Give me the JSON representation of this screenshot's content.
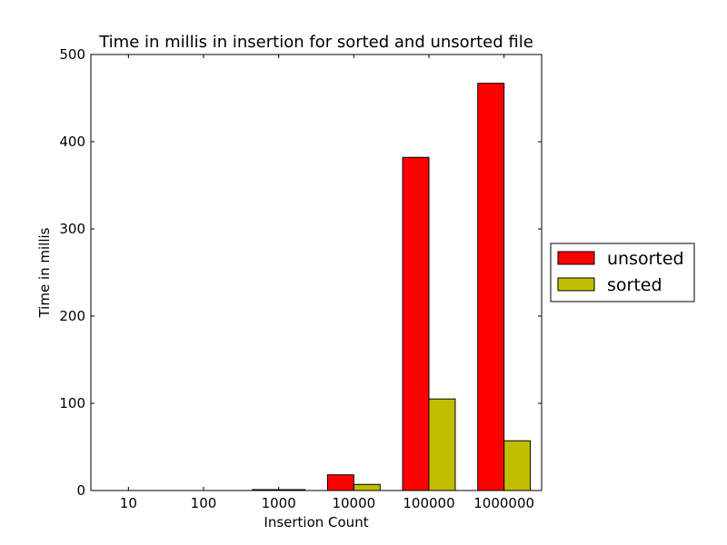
{
  "chart_data": {
    "type": "bar",
    "title": "Time in millis in insertion for sorted and unsorted file",
    "xlabel": "Insertion Count",
    "ylabel": "Time in millis",
    "categories": [
      "10",
      "100",
      "1000",
      "10000",
      "100000",
      "1000000"
    ],
    "series": [
      {
        "name": "unsorted",
        "color": "#ff0000",
        "values": [
          0,
          0,
          1,
          18,
          382,
          467
        ]
      },
      {
        "name": "sorted",
        "color": "#bfbf00",
        "values": [
          0,
          0,
          1,
          7,
          105,
          57
        ]
      }
    ],
    "ylim": [
      0,
      500
    ],
    "yticks": [
      0,
      100,
      200,
      300,
      400,
      500
    ],
    "grid": false,
    "legend_position": "right"
  }
}
